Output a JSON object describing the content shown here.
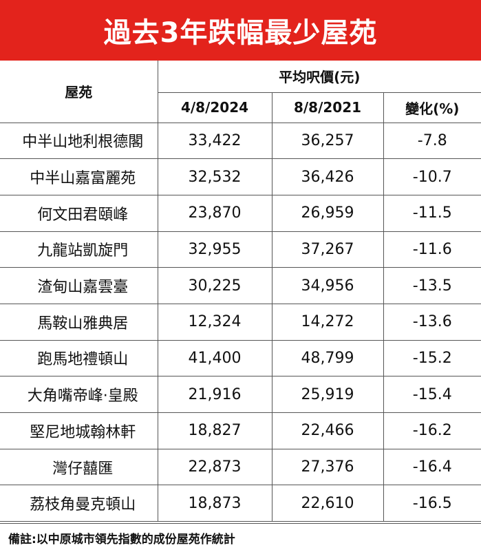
{
  "title": "過去3年跌幅最少屋苑",
  "headers": {
    "estate": "屋苑",
    "avg_price": "平均呎價(元)",
    "date_2024": "4/8/2024",
    "date_2021": "8/8/2021",
    "change": "變化(%)"
  },
  "footnote": "備註:以中原城市領先指數的成份屋苑作統計",
  "chart_data": {
    "type": "table",
    "title": "過去3年跌幅最少屋苑",
    "columns": [
      "屋苑",
      "4/8/2024",
      "8/8/2021",
      "變化(%)"
    ],
    "rows": [
      {
        "name": "中半山地利根德閣",
        "price_2024": "33,422",
        "price_2021": "36,257",
        "change": "-7.8"
      },
      {
        "name": "中半山嘉富麗苑",
        "price_2024": "32,532",
        "price_2021": "36,426",
        "change": "-10.7"
      },
      {
        "name": "何文田君頤峰",
        "price_2024": "23,870",
        "price_2021": "26,959",
        "change": "-11.5"
      },
      {
        "name": "九龍站凱旋門",
        "price_2024": "32,955",
        "price_2021": "37,267",
        "change": "-11.6"
      },
      {
        "name": "渣甸山嘉雲臺",
        "price_2024": "30,225",
        "price_2021": "34,956",
        "change": "-13.5"
      },
      {
        "name": "馬鞍山雅典居",
        "price_2024": "12,324",
        "price_2021": "14,272",
        "change": "-13.6"
      },
      {
        "name": "跑馬地禮頓山",
        "price_2024": "41,400",
        "price_2021": "48,799",
        "change": "-15.2"
      },
      {
        "name": "大角嘴帝峰·皇殿",
        "price_2024": "21,916",
        "price_2021": "25,919",
        "change": "-15.4"
      },
      {
        "name": "堅尼地城翰林軒",
        "price_2024": "18,827",
        "price_2021": "22,466",
        "change": "-16.2"
      },
      {
        "name": "灣仔囍匯",
        "price_2024": "22,873",
        "price_2021": "27,376",
        "change": "-16.4"
      },
      {
        "name": "荔枝角曼克頓山",
        "price_2024": "18,873",
        "price_2021": "22,610",
        "change": "-16.5"
      }
    ]
  },
  "colors": {
    "title_background": "#e3231c",
    "title_text": "#ffffff",
    "border": "#555555"
  }
}
